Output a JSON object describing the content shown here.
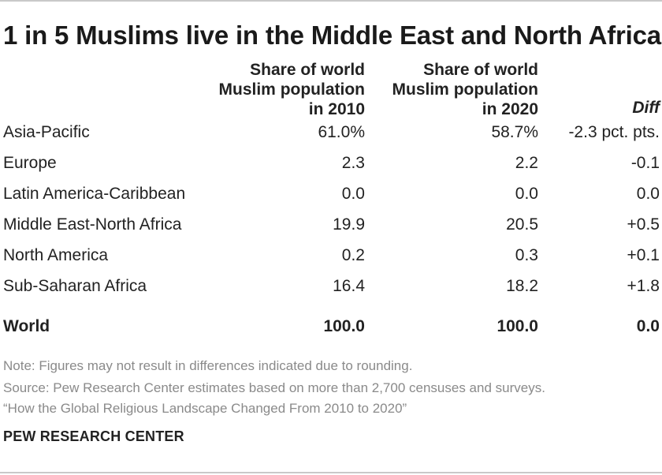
{
  "title": "1 in 5 Muslims live in the Middle East and North Africa",
  "chart_data": {
    "type": "table",
    "columns": [
      {
        "line1": "Share of world",
        "line2": "Muslim population",
        "line3": "in 2010"
      },
      {
        "line1": "Share of world",
        "line2": "Muslim population",
        "line3": "in 2020"
      },
      {
        "label": "Diff"
      }
    ],
    "rows": [
      {
        "region": "Asia-Pacific",
        "y2010": "61.0%",
        "y2020": "58.7%",
        "diff": "-2.3 pct. pts."
      },
      {
        "region": "Europe",
        "y2010": "2.3",
        "y2020": "2.2",
        "diff": "-0.1"
      },
      {
        "region": "Latin America-Caribbean",
        "y2010": "0.0",
        "y2020": "0.0",
        "diff": "0.0"
      },
      {
        "region": "Middle East-North Africa",
        "y2010": "19.9",
        "y2020": "20.5",
        "diff": "+0.5"
      },
      {
        "region": "North America",
        "y2010": "0.2",
        "y2020": "0.3",
        "diff": "+0.1"
      },
      {
        "region": "Sub-Saharan Africa",
        "y2010": "16.4",
        "y2020": "18.2",
        "diff": "+1.8"
      }
    ],
    "total": {
      "region": "World",
      "y2010": "100.0",
      "y2020": "100.0",
      "diff": "0.0"
    }
  },
  "notes": {
    "note": "Note: Figures may not result in differences indicated due to rounding.",
    "source": "Source: Pew Research Center estimates based on more than 2,700 censuses and surveys.",
    "report": "“How the Global Religious Landscape Changed From 2010 to 2020”"
  },
  "brand": "PEW RESEARCH CENTER"
}
